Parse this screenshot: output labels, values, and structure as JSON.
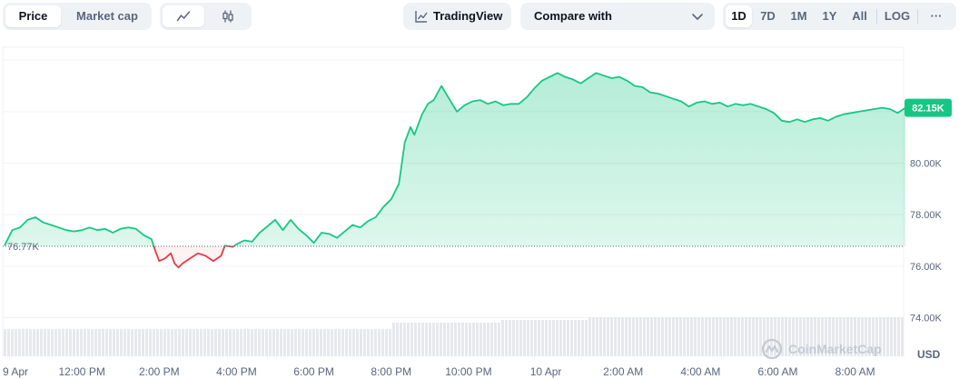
{
  "toolbar": {
    "tabs": [
      {
        "label": "Price",
        "active": true
      },
      {
        "label": "Market cap",
        "active": false
      }
    ],
    "chart_types": [
      {
        "icon": "line-chart-icon",
        "active": true
      },
      {
        "icon": "candlestick-icon",
        "active": false
      }
    ],
    "tradingview_label": "TradingView",
    "compare_label": "Compare with",
    "ranges": [
      {
        "label": "1D",
        "active": true
      },
      {
        "label": "7D",
        "active": false
      },
      {
        "label": "1M",
        "active": false
      },
      {
        "label": "1Y",
        "active": false
      },
      {
        "label": "All",
        "active": false
      },
      {
        "label": "LOG",
        "active": false
      }
    ],
    "more_label": "···"
  },
  "watermark": "CoinMarketCap",
  "colors": {
    "up": "#16c784",
    "down": "#ea3943",
    "axis_text": "#58667e",
    "grid": "#eff2f5",
    "volume": "#e6e8ec"
  },
  "chart_data": {
    "type": "area",
    "currency_label": "USD",
    "y_range": [
      72500,
      84500
    ],
    "y_ticks": [
      {
        "value": 74000,
        "label": "74.00K"
      },
      {
        "value": 76000,
        "label": "76.00K"
      },
      {
        "value": 78000,
        "label": "78.00K"
      },
      {
        "value": 80000,
        "label": "80.00K"
      }
    ],
    "x_ticks": [
      {
        "label": "9 Apr",
        "t": 0
      },
      {
        "label": "12:00 PM",
        "t": 2.0
      },
      {
        "label": "2:00 PM",
        "t": 4.0
      },
      {
        "label": "4:00 PM",
        "t": 6.0
      },
      {
        "label": "6:00 PM",
        "t": 8.0
      },
      {
        "label": "8:00 PM",
        "t": 10.0
      },
      {
        "label": "10:00 PM",
        "t": 12.0
      },
      {
        "label": "10 Apr",
        "t": 14.0
      },
      {
        "label": "2:00 AM",
        "t": 16.0
      },
      {
        "label": "4:00 AM",
        "t": 18.0
      },
      {
        "label": "6:00 AM",
        "t": 20.0
      },
      {
        "label": "8:00 AM",
        "t": 22.0
      }
    ],
    "x_unit": "hours since 10:00 AM, 9 Apr",
    "open_price": {
      "value": 76770,
      "label": "76.77K"
    },
    "current_price": {
      "value": 82150,
      "label": "82.15K"
    },
    "series": [
      {
        "name": "Price",
        "points": [
          [
            0.0,
            76.8
          ],
          [
            0.2,
            77.4
          ],
          [
            0.4,
            77.5
          ],
          [
            0.6,
            77.8
          ],
          [
            0.8,
            77.9
          ],
          [
            1.0,
            77.7
          ],
          [
            1.2,
            77.6
          ],
          [
            1.4,
            77.5
          ],
          [
            1.6,
            77.4
          ],
          [
            1.8,
            77.35
          ],
          [
            2.0,
            77.4
          ],
          [
            2.2,
            77.5
          ],
          [
            2.4,
            77.4
          ],
          [
            2.6,
            77.45
          ],
          [
            2.8,
            77.3
          ],
          [
            3.0,
            77.45
          ],
          [
            3.2,
            77.5
          ],
          [
            3.4,
            77.45
          ],
          [
            3.6,
            77.2
          ],
          [
            3.8,
            77.05
          ],
          [
            3.9,
            76.6
          ],
          [
            4.0,
            76.2
          ],
          [
            4.15,
            76.3
          ],
          [
            4.3,
            76.5
          ],
          [
            4.4,
            76.1
          ],
          [
            4.5,
            75.95
          ],
          [
            4.6,
            76.1
          ],
          [
            4.8,
            76.3
          ],
          [
            5.0,
            76.5
          ],
          [
            5.2,
            76.4
          ],
          [
            5.4,
            76.2
          ],
          [
            5.6,
            76.4
          ],
          [
            5.7,
            76.8
          ],
          [
            5.9,
            76.75
          ],
          [
            6.0,
            76.85
          ],
          [
            6.2,
            77.0
          ],
          [
            6.4,
            76.95
          ],
          [
            6.6,
            77.3
          ],
          [
            6.8,
            77.55
          ],
          [
            7.0,
            77.8
          ],
          [
            7.2,
            77.4
          ],
          [
            7.4,
            77.8
          ],
          [
            7.6,
            77.45
          ],
          [
            7.8,
            77.2
          ],
          [
            8.0,
            76.9
          ],
          [
            8.2,
            77.3
          ],
          [
            8.4,
            77.25
          ],
          [
            8.6,
            77.1
          ],
          [
            8.8,
            77.35
          ],
          [
            9.0,
            77.6
          ],
          [
            9.2,
            77.5
          ],
          [
            9.4,
            77.75
          ],
          [
            9.6,
            77.9
          ],
          [
            9.8,
            78.3
          ],
          [
            10.0,
            78.6
          ],
          [
            10.2,
            79.2
          ],
          [
            10.35,
            80.8
          ],
          [
            10.5,
            81.4
          ],
          [
            10.6,
            81.1
          ],
          [
            10.8,
            81.9
          ],
          [
            10.95,
            82.3
          ],
          [
            11.1,
            82.45
          ],
          [
            11.3,
            83.0
          ],
          [
            11.5,
            82.5
          ],
          [
            11.7,
            82.0
          ],
          [
            11.9,
            82.25
          ],
          [
            12.1,
            82.4
          ],
          [
            12.3,
            82.45
          ],
          [
            12.5,
            82.3
          ],
          [
            12.7,
            82.4
          ],
          [
            12.9,
            82.25
          ],
          [
            13.1,
            82.3
          ],
          [
            13.3,
            82.3
          ],
          [
            13.5,
            82.55
          ],
          [
            13.7,
            82.9
          ],
          [
            13.9,
            83.2
          ],
          [
            14.1,
            83.35
          ],
          [
            14.3,
            83.5
          ],
          [
            14.5,
            83.35
          ],
          [
            14.7,
            83.25
          ],
          [
            14.9,
            83.1
          ],
          [
            15.1,
            83.3
          ],
          [
            15.3,
            83.5
          ],
          [
            15.5,
            83.4
          ],
          [
            15.7,
            83.3
          ],
          [
            15.9,
            83.35
          ],
          [
            16.1,
            83.2
          ],
          [
            16.3,
            83.0
          ],
          [
            16.5,
            82.95
          ],
          [
            16.7,
            82.75
          ],
          [
            16.9,
            82.7
          ],
          [
            17.1,
            82.6
          ],
          [
            17.3,
            82.5
          ],
          [
            17.5,
            82.4
          ],
          [
            17.7,
            82.2
          ],
          [
            17.9,
            82.35
          ],
          [
            18.1,
            82.4
          ],
          [
            18.3,
            82.3
          ],
          [
            18.5,
            82.35
          ],
          [
            18.7,
            82.2
          ],
          [
            18.9,
            82.3
          ],
          [
            19.1,
            82.25
          ],
          [
            19.3,
            82.3
          ],
          [
            19.5,
            82.2
          ],
          [
            19.7,
            82.1
          ],
          [
            19.9,
            81.95
          ],
          [
            20.1,
            81.65
          ],
          [
            20.3,
            81.6
          ],
          [
            20.5,
            81.7
          ],
          [
            20.7,
            81.6
          ],
          [
            20.9,
            81.7
          ],
          [
            21.1,
            81.75
          ],
          [
            21.3,
            81.65
          ],
          [
            21.5,
            81.8
          ],
          [
            21.7,
            81.9
          ],
          [
            21.9,
            81.95
          ],
          [
            22.1,
            82.0
          ],
          [
            22.3,
            82.05
          ],
          [
            22.5,
            82.1
          ],
          [
            22.7,
            82.15
          ],
          [
            22.9,
            82.1
          ],
          [
            23.1,
            81.95
          ],
          [
            23.3,
            82.15
          ]
        ]
      }
    ]
  }
}
